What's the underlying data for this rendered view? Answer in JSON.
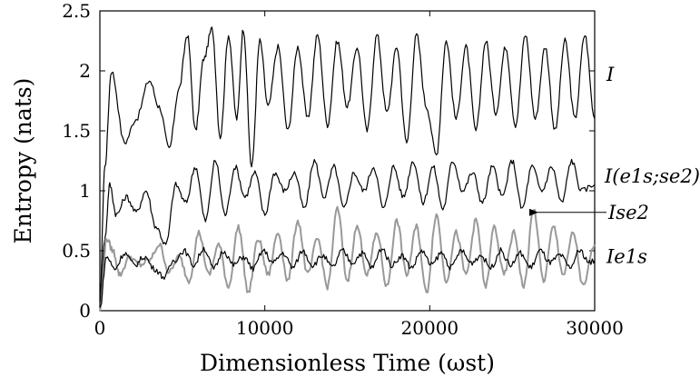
{
  "chart_data": {
    "type": "line",
    "xlabel": "Dimensionless Time (ωst)",
    "ylabel": "Entropy (nats)",
    "xlim": [
      0,
      30000
    ],
    "ylim": [
      0,
      2.5
    ],
    "x_ticks": [
      "0",
      "10000",
      "20000",
      "30000"
    ],
    "y_ticks": [
      "0",
      "0.5",
      "1",
      "1.5",
      "2",
      "2.5"
    ],
    "grid": false,
    "legend": "inline labels at right",
    "series": [
      {
        "name": "I",
        "color": "#000000",
        "x": [
          0,
          300,
          700,
          1500,
          2200,
          3000,
          3600,
          4200,
          4800,
          5300,
          5800,
          6300,
          6800,
          7300,
          7800,
          8300,
          8700,
          9200,
          9700,
          10200,
          10800,
          11400,
          12000,
          12600,
          13200,
          13800,
          14400,
          15000,
          15600,
          16200,
          16800,
          17400,
          18000,
          18600,
          19200,
          19800,
          20400,
          21000,
          21600,
          22200,
          22800,
          23400,
          24000,
          24600,
          25200,
          25800,
          26400,
          27000,
          27600,
          28200,
          28800,
          29400,
          30000
        ],
        "values": [
          0.1,
          1.2,
          2.0,
          1.4,
          1.6,
          1.92,
          1.7,
          1.35,
          1.85,
          2.3,
          1.5,
          2.1,
          2.35,
          1.45,
          2.3,
          1.6,
          2.35,
          1.2,
          2.25,
          1.7,
          2.2,
          1.5,
          2.2,
          1.6,
          2.3,
          1.55,
          2.25,
          1.7,
          2.2,
          1.5,
          2.3,
          1.65,
          2.2,
          1.4,
          2.3,
          1.7,
          1.3,
          2.25,
          1.6,
          2.2,
          1.5,
          2.25,
          1.65,
          2.2,
          1.55,
          2.3,
          1.6,
          2.2,
          1.5,
          2.25,
          1.6,
          2.3,
          1.6
        ]
      },
      {
        "name": "I(e1s;se2)",
        "color": "#000000",
        "x": [
          0,
          300,
          600,
          1000,
          1600,
          2200,
          2800,
          3400,
          4000,
          4600,
          5200,
          5800,
          6400,
          7000,
          7600,
          8200,
          8800,
          9400,
          10000,
          10600,
          11200,
          11800,
          12400,
          13000,
          13600,
          14200,
          14800,
          15400,
          16000,
          16600,
          17200,
          17800,
          18400,
          19000,
          19600,
          20200,
          20800,
          21400,
          22000,
          22600,
          23200,
          23800,
          24400,
          25000,
          25600,
          26200,
          26800,
          27400,
          28000,
          28600,
          29200,
          30000
        ],
        "values": [
          0.05,
          0.6,
          1.05,
          0.8,
          0.95,
          0.82,
          1.0,
          0.7,
          0.55,
          1.05,
          0.9,
          1.2,
          0.75,
          1.25,
          0.8,
          1.2,
          0.95,
          1.15,
          0.8,
          1.15,
          1.0,
          1.15,
          0.85,
          1.25,
          0.95,
          1.2,
          0.85,
          1.15,
          1.0,
          1.2,
          0.85,
          1.2,
          0.95,
          1.25,
          0.9,
          1.2,
          0.85,
          1.25,
          1.0,
          1.15,
          0.9,
          1.2,
          0.95,
          1.25,
          0.85,
          1.2,
          1.0,
          1.2,
          0.9,
          1.25,
          1.0,
          1.05
        ]
      },
      {
        "name": "Ise2",
        "color": "#999999",
        "x": [
          0,
          400,
          800,
          1200,
          1800,
          2400,
          3000,
          3600,
          4200,
          4800,
          5400,
          6000,
          6600,
          7200,
          7800,
          8400,
          9000,
          9600,
          10200,
          10800,
          11400,
          12000,
          12600,
          13200,
          13800,
          14400,
          15000,
          15600,
          16200,
          16800,
          17400,
          18000,
          18600,
          19200,
          19800,
          20400,
          21000,
          21600,
          22200,
          22800,
          23400,
          23900,
          24500,
          25100,
          25700,
          26300,
          26900,
          27500,
          28100,
          28700,
          29300,
          30000
        ],
        "values": [
          0.0,
          0.6,
          0.5,
          0.3,
          0.45,
          0.38,
          0.42,
          0.55,
          0.32,
          0.45,
          0.25,
          0.65,
          0.3,
          0.55,
          0.2,
          0.7,
          0.15,
          0.6,
          0.3,
          0.65,
          0.25,
          0.75,
          0.3,
          0.6,
          0.2,
          0.85,
          0.25,
          0.7,
          0.3,
          0.65,
          0.2,
          0.75,
          0.3,
          0.7,
          0.15,
          0.8,
          0.25,
          0.65,
          0.3,
          0.75,
          0.2,
          0.7,
          0.3,
          0.65,
          0.2,
          0.85,
          0.25,
          0.7,
          0.3,
          0.65,
          0.2,
          0.55
        ]
      },
      {
        "name": "Ie1s",
        "color": "#000000",
        "x": [
          0,
          400,
          900,
          1500,
          2100,
          2700,
          3300,
          3900,
          4500,
          5100,
          5700,
          6300,
          6900,
          7500,
          8100,
          8700,
          9300,
          9900,
          10500,
          11100,
          11700,
          12300,
          12900,
          13500,
          14100,
          14700,
          15300,
          15900,
          16500,
          17100,
          17700,
          18300,
          18900,
          19500,
          20100,
          20700,
          21300,
          21900,
          22500,
          23100,
          23700,
          24300,
          24900,
          25500,
          26100,
          26700,
          27300,
          27900,
          28500,
          29100,
          29700,
          30000
        ],
        "values": [
          0.02,
          0.45,
          0.35,
          0.48,
          0.38,
          0.45,
          0.35,
          0.28,
          0.42,
          0.5,
          0.38,
          0.52,
          0.35,
          0.5,
          0.38,
          0.45,
          0.35,
          0.5,
          0.4,
          0.48,
          0.36,
          0.5,
          0.38,
          0.46,
          0.36,
          0.5,
          0.4,
          0.48,
          0.36,
          0.52,
          0.38,
          0.46,
          0.36,
          0.5,
          0.38,
          0.48,
          0.36,
          0.5,
          0.4,
          0.46,
          0.36,
          0.5,
          0.38,
          0.48,
          0.36,
          0.5,
          0.4,
          0.46,
          0.36,
          0.5,
          0.4,
          0.42
        ]
      }
    ],
    "annotations": [
      {
        "text": "I",
        "series": "I"
      },
      {
        "text": "I(e1s;se2)",
        "series": "I(e1s;se2)"
      },
      {
        "text": "Ise2",
        "series": "Ise2",
        "arrow": true
      },
      {
        "text": "Ie1s",
        "series": "Ie1s"
      }
    ]
  }
}
